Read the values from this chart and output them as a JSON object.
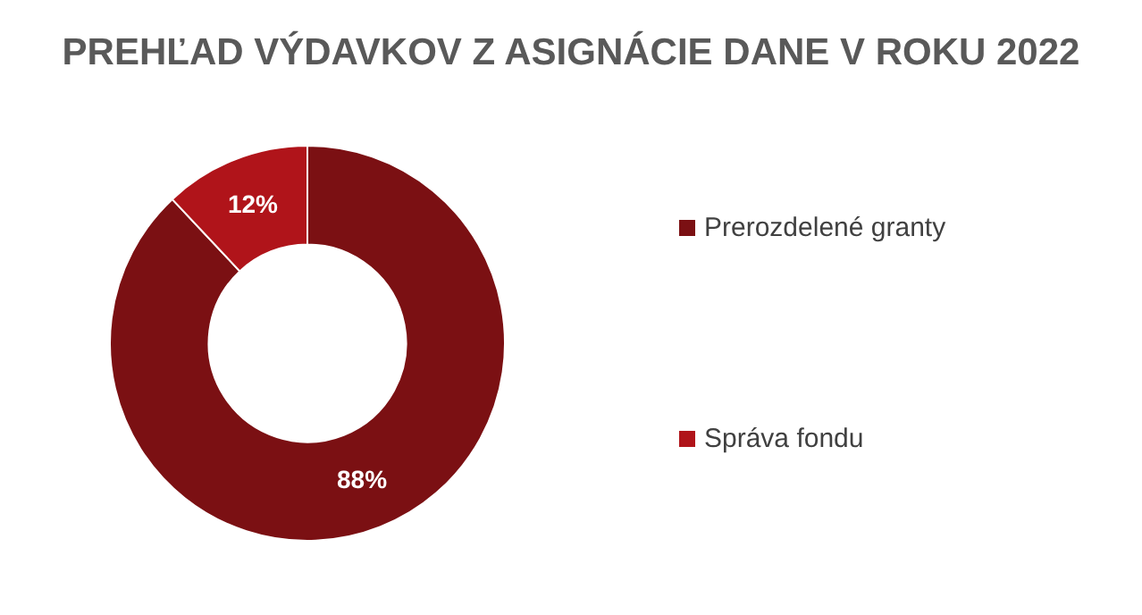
{
  "chart_data": {
    "type": "donut",
    "title": "PREHĽAD VÝDAVKOV Z ASIGNÁCIE DANE V ROKU 2022",
    "categories": [
      "Prerozdelené granty",
      "Správa fondu"
    ],
    "values": [
      88,
      12
    ],
    "colors": [
      "#7b1013",
      "#b0141a"
    ],
    "value_labels": [
      "88%",
      "12%"
    ],
    "legend": "right"
  }
}
